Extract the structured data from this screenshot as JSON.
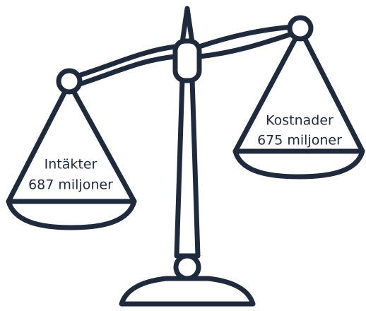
{
  "left_pan": {
    "label": "Intäkter",
    "amount": "687 miljoner"
  },
  "right_pan": {
    "label": "Kostnader",
    "amount": "675 miljoner"
  }
}
